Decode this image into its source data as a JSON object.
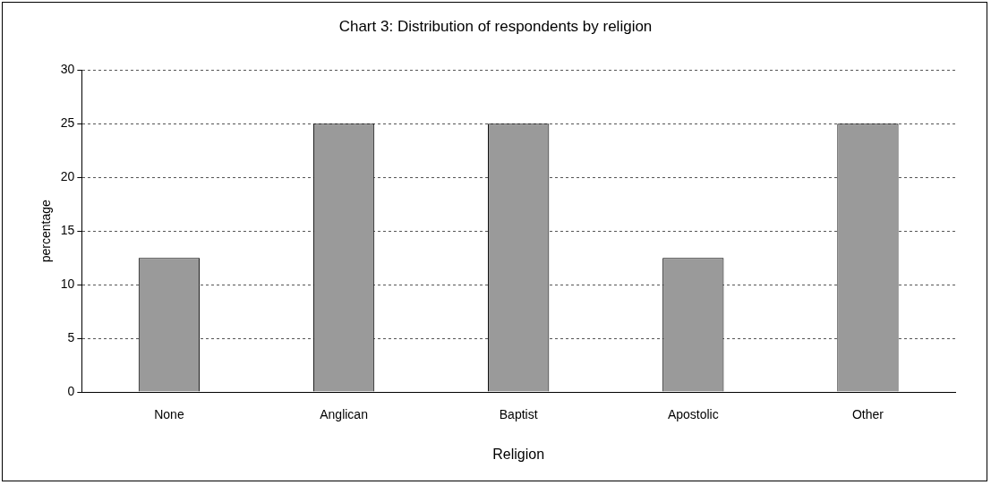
{
  "chart_data": {
    "type": "bar",
    "title": "Chart 3: Distribution of respondents by religion",
    "xlabel": "Religion",
    "ylabel": "percentage",
    "categories": [
      "None",
      "Anglican",
      "Baptist",
      "Apostolic",
      "Other"
    ],
    "values": [
      12.5,
      25,
      25,
      12.5,
      25
    ],
    "color": "#9a9a9a",
    "ylim": [
      0,
      30
    ],
    "yticks": [
      0,
      5,
      10,
      15,
      20,
      25,
      30
    ],
    "grid": "y"
  }
}
